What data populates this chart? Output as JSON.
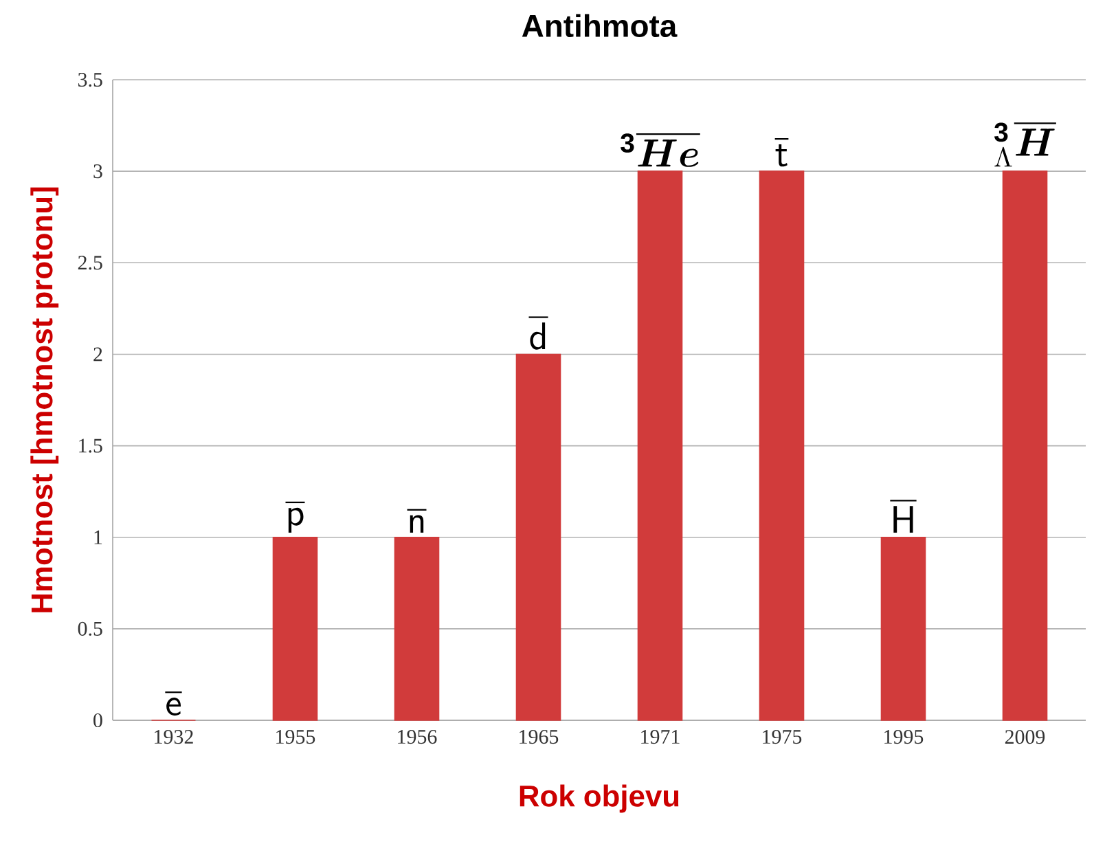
{
  "chart_data": {
    "type": "bar",
    "title": "Antihmota",
    "xlabel": "Rok objevu",
    "ylabel": "Hmotnost [hmotnost protonu]",
    "categories": [
      "1932",
      "1955",
      "1956",
      "1965",
      "1971",
      "1975",
      "1995",
      "2009"
    ],
    "values": [
      0,
      1,
      1,
      2,
      3,
      3,
      1,
      3
    ],
    "color": "#d13b3b",
    "ylim": [
      0,
      3.5
    ],
    "yticks": [
      0,
      0.5,
      1,
      1.5,
      2,
      2.5,
      3,
      3.5
    ],
    "grid": "y",
    "annotations": [
      {
        "text": "\\overline{\\mathsf{e}}",
        "x": "1932",
        "y": 0
      },
      {
        "text": "\\overline{\\mathsf{p}}",
        "x": "1955",
        "y": 1
      },
      {
        "text": "\\overline{\\mathsf{n}}",
        "x": "1956",
        "y": 1
      },
      {
        "text": "\\overline{\\mathsf{d}}",
        "x": "1965",
        "y": 2
      },
      {
        "text": "{}^{\\mathbf{3}}\\overline{\\boldsymbol{He}}",
        "x": "1971",
        "y": 3
      },
      {
        "text": "\\overline{\\mathsf{t}}",
        "x": "1975",
        "y": 3
      },
      {
        "text": "\\overline{\\mathsf{H}}",
        "x": "1995",
        "y": 1
      },
      {
        "text": "{}^{\\mathbf{3}}_{\\Lambda}\\overline{\\boldsymbol{H}}",
        "x": "2009",
        "y": 3
      }
    ]
  }
}
